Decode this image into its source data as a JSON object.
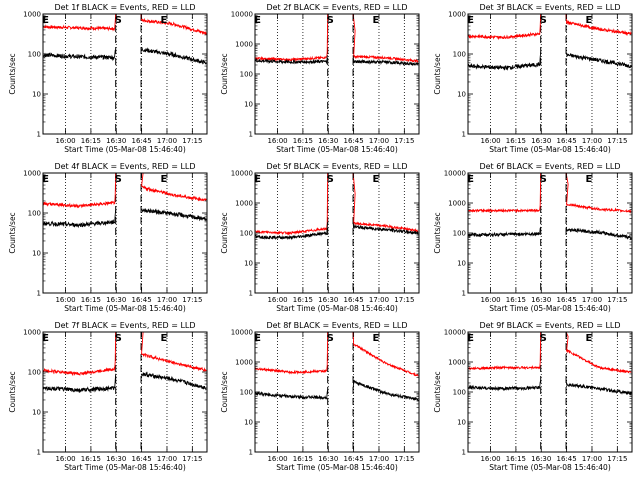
{
  "chart_data": [
    {
      "title": "Det 1f BLACK = Events, RED = LLD",
      "xlabel": "Start Time (05-Mar-08 15:46:40)",
      "ylabel": "Counts/sec",
      "black": {
        "pre": [
          95,
          85,
          82
        ],
        "post": [
          130,
          95,
          60
        ]
      },
      "red": {
        "pre": [
          480,
          450,
          430
        ],
        "post": [
          700,
          560,
          330
        ]
      },
      "black_spike": 130,
      "red_spike": 1200
    },
    {
      "title": "Det 2f BLACK = Events, RED = LLD",
      "xlabel": "Start Time (05-Mar-08 15:46:40)",
      "ylabel": "Counts/sec",
      "black": {
        "pre": [
          280,
          250,
          260
        ],
        "post": [
          260,
          250,
          210
        ]
      },
      "red": {
        "pre": [
          330,
          300,
          360
        ],
        "post": [
          380,
          350,
          270
        ]
      },
      "black_spike": 420,
      "red_spike": 20000
    },
    {
      "title": "Det 3f BLACK = Events, RED = LLD",
      "xlabel": "Start Time (05-Mar-08 15:46:40)",
      "ylabel": "Counts/sec",
      "black": {
        "pre": [
          50,
          45,
          55
        ],
        "post": [
          95,
          70,
          50
        ]
      },
      "red": {
        "pre": [
          280,
          260,
          320
        ],
        "post": [
          620,
          420,
          320
        ]
      },
      "black_spike": 110,
      "red_spike": 2000
    },
    {
      "title": "Det 4f BLACK = Events, RED = LLD",
      "xlabel": "Start Time (05-Mar-08 15:46:40)",
      "ylabel": "Counts/sec",
      "black": {
        "pre": [
          55,
          50,
          60
        ],
        "post": [
          120,
          95,
          70
        ]
      },
      "red": {
        "pre": [
          170,
          150,
          180
        ],
        "post": [
          440,
          280,
          210
        ]
      },
      "black_spike": 120,
      "red_spike": 20000
    },
    {
      "title": "Det 5f BLACK = Events, RED = LLD",
      "xlabel": "Start Time (05-Mar-08 15:46:40)",
      "ylabel": "Counts/sec",
      "black": {
        "pre": [
          75,
          70,
          100
        ],
        "post": [
          160,
          130,
          100
        ]
      },
      "red": {
        "pre": [
          110,
          100,
          140
        ],
        "post": [
          210,
          170,
          120
        ]
      },
      "black_spike": 230,
      "red_spike": 20000
    },
    {
      "title": "Det 6f BLACK = Events, RED = LLD",
      "xlabel": "Start Time (05-Mar-08 15:46:40)",
      "ylabel": "Counts/sec",
      "black": {
        "pre": [
          85,
          90,
          95
        ],
        "post": [
          130,
          105,
          70
        ]
      },
      "red": {
        "pre": [
          560,
          560,
          570
        ],
        "post": [
          900,
          620,
          530
        ]
      },
      "black_spike": 160,
      "red_spike": 20000
    },
    {
      "title": "Det 7f BLACK = Events, RED = LLD",
      "xlabel": "Start Time (05-Mar-08 15:46:40)",
      "ylabel": "Counts/sec",
      "black": {
        "pre": [
          40,
          35,
          40
        ],
        "post": [
          90,
          65,
          40
        ]
      },
      "red": {
        "pre": [
          110,
          90,
          120
        ],
        "post": [
          280,
          170,
          110
        ]
      },
      "black_spike": 90,
      "red_spike": 6000
    },
    {
      "title": "Det 8f BLACK = Events, RED = LLD",
      "xlabel": "Start Time (05-Mar-08 15:46:40)",
      "ylabel": "Counts/sec",
      "black": {
        "pre": [
          90,
          70,
          65
        ],
        "post": [
          220,
          90,
          55
        ]
      },
      "red": {
        "pre": [
          600,
          450,
          500
        ],
        "post": [
          4000,
          900,
          350
        ]
      },
      "black_spike": 120,
      "red_spike": 20000
    },
    {
      "title": "Det 9f BLACK = Events, RED = LLD",
      "xlabel": "Start Time (05-Mar-08 15:46:40)",
      "ylabel": "Counts/sec",
      "black": {
        "pre": [
          140,
          130,
          140
        ],
        "post": [
          180,
          130,
          90
        ]
      },
      "red": {
        "pre": [
          600,
          650,
          650
        ],
        "post": [
          2500,
          650,
          450
        ]
      },
      "black_spike": 250,
      "red_spike": 20000
    }
  ],
  "axes": {
    "type": "line",
    "yscale": "log",
    "ylim": [
      1,
      1000
    ],
    "yticks": [
      "1",
      "10",
      "100",
      "1000"
    ],
    "ylim_alt": [
      1,
      10000
    ],
    "yticks_alt": [
      "1",
      "10",
      "100",
      "1000",
      "10000"
    ],
    "xticks": [
      "16:00",
      "16:15",
      "16:30",
      "16:45",
      "17:00",
      "17:15"
    ],
    "xtick_minutes": [
      13.33,
      28.33,
      43.33,
      58.33,
      73.33,
      88.33
    ],
    "xlim_minutes": [
      0,
      97
    ],
    "gap_minutes": [
      43.0,
      58.0
    ],
    "markers": [
      {
        "label": "E",
        "minute": 1.5
      },
      {
        "label": "S",
        "minute": 44.5
      },
      {
        "label": "E",
        "minute": 71.5
      }
    ],
    "colors": {
      "events": "#000000",
      "lld": "#ff0000"
    }
  }
}
